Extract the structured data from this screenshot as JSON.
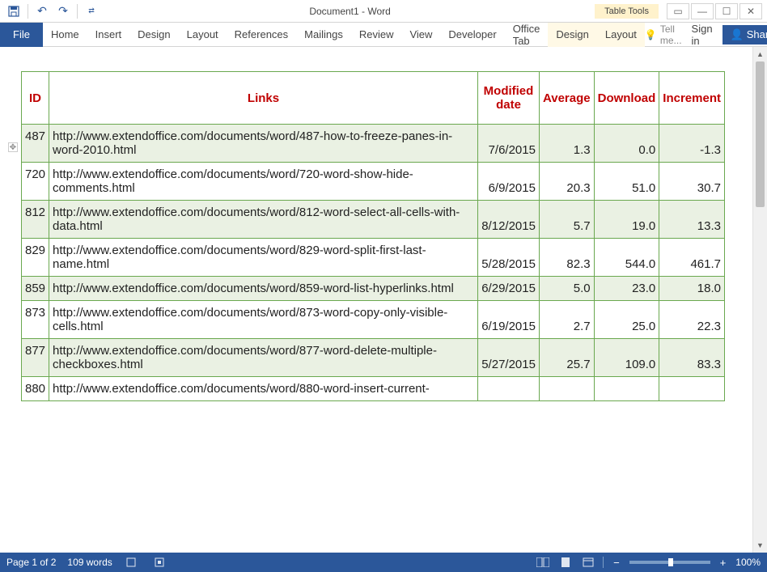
{
  "titlebar": {
    "doc_title": "Document1 - Word",
    "table_tools": "Table Tools"
  },
  "ribbon": {
    "file": "File",
    "tabs": [
      "Home",
      "Insert",
      "Design",
      "Layout",
      "References",
      "Mailings",
      "Review",
      "View",
      "Developer",
      "Office Tab"
    ],
    "context_tabs": [
      "Design",
      "Layout"
    ],
    "tellme": "Tell me...",
    "signin": "Sign in",
    "share": "Share"
  },
  "table": {
    "headers": {
      "id": "ID",
      "links": "Links",
      "date": "Modified date",
      "avg": "Average",
      "dl": "Download",
      "inc": "Increment"
    },
    "rows": [
      {
        "id": "487",
        "link": "http://www.extendoffice.com/documents/word/487-how-to-freeze-panes-in-word-2010.html",
        "date": "7/6/2015",
        "avg": "1.3",
        "dl": "0.0",
        "inc": "-1.3",
        "band": true
      },
      {
        "id": "720",
        "link": "http://www.extendoffice.com/documents/word/720-word-show-hide-comments.html",
        "date": "6/9/2015",
        "avg": "20.3",
        "dl": "51.0",
        "inc": "30.7",
        "band": false
      },
      {
        "id": "812",
        "link": "http://www.extendoffice.com/documents/word/812-word-select-all-cells-with-data.html",
        "date": "8/12/2015",
        "avg": "5.7",
        "dl": "19.0",
        "inc": "13.3",
        "band": true
      },
      {
        "id": "829",
        "link": "http://www.extendoffice.com/documents/word/829-word-split-first-last-name.html",
        "date": "5/28/2015",
        "avg": "82.3",
        "dl": "544.0",
        "inc": "461.7",
        "band": false
      },
      {
        "id": "859",
        "link": "http://www.extendoffice.com/documents/word/859-word-list-hyperlinks.html",
        "date": "6/29/2015",
        "avg": "5.0",
        "dl": "23.0",
        "inc": "18.0",
        "band": true
      },
      {
        "id": "873",
        "link": "http://www.extendoffice.com/documents/word/873-word-copy-only-visible-cells.html",
        "date": "6/19/2015",
        "avg": "2.7",
        "dl": "25.0",
        "inc": "22.3",
        "band": false
      },
      {
        "id": "877",
        "link": "http://www.extendoffice.com/documents/word/877-word-delete-multiple-checkboxes.html",
        "date": "5/27/2015",
        "avg": "25.7",
        "dl": "109.0",
        "inc": "83.3",
        "band": true
      },
      {
        "id": "880",
        "link": "http://www.extendoffice.com/documents/word/880-word-insert-current-",
        "date": "",
        "avg": "",
        "dl": "",
        "inc": "",
        "band": false
      }
    ],
    "colors": {
      "border": "#6aa84f",
      "header_text": "#c00000",
      "band_bg": "#eaf1e3"
    }
  },
  "statusbar": {
    "page": "Page 1 of 2",
    "words": "109 words",
    "zoom": "100%"
  }
}
